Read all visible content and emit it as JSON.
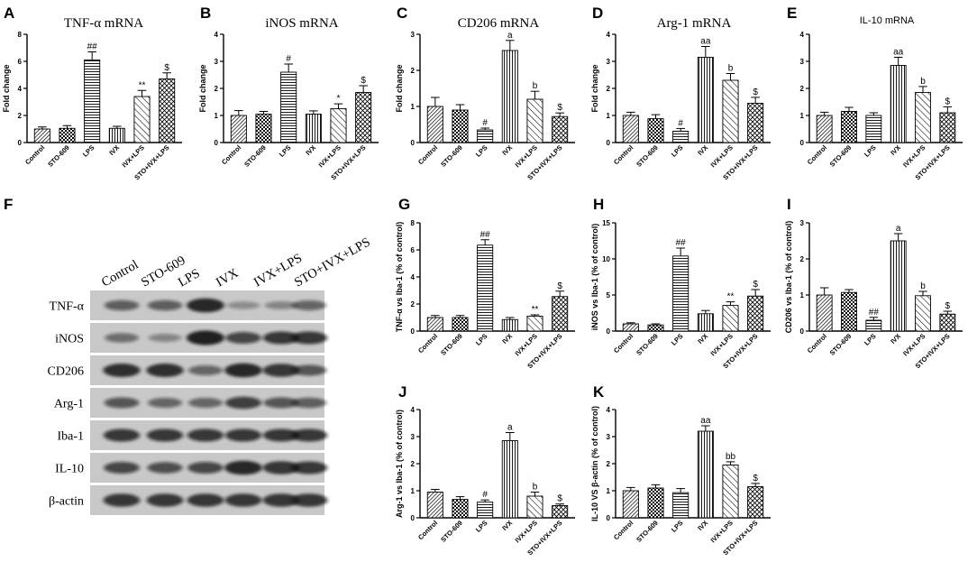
{
  "categories": [
    "Control",
    "STO-609",
    "LPS",
    "IVX",
    "IVX+LPS",
    "STO+IVX+LPS"
  ],
  "chart_data": [
    {
      "id": "A",
      "type": "bar",
      "title": "TNF-α mRNA",
      "title_style": "serif",
      "ylabel": "Fold change",
      "ylim": [
        0,
        8
      ],
      "yticks": [
        0,
        2,
        4,
        6,
        8
      ],
      "categories": [
        "Control",
        "STO-609",
        "LPS",
        "IVX",
        "IVX+LPS",
        "STO+IVX+LPS"
      ],
      "values": [
        1.0,
        1.05,
        6.1,
        1.05,
        3.4,
        4.7
      ],
      "errors": [
        0.15,
        0.2,
        0.6,
        0.15,
        0.45,
        0.45
      ],
      "labels": [
        "",
        "",
        "##",
        "",
        "**",
        "$"
      ]
    },
    {
      "id": "B",
      "type": "bar",
      "title": "iNOS mRNA",
      "title_style": "serif",
      "ylabel": "Fold change",
      "ylim": [
        0,
        4
      ],
      "yticks": [
        0,
        1,
        2,
        3,
        4
      ],
      "categories": [
        "Control",
        "STO-609",
        "LPS",
        "IVX",
        "IVX+LPS",
        "STO+IVX+LPS"
      ],
      "values": [
        1.0,
        1.05,
        2.6,
        1.05,
        1.25,
        1.85
      ],
      "errors": [
        0.18,
        0.1,
        0.3,
        0.12,
        0.18,
        0.25
      ],
      "labels": [
        "",
        "",
        "#",
        "",
        "*",
        "$"
      ]
    },
    {
      "id": "C",
      "type": "bar",
      "title": "CD206 mRNA",
      "title_style": "serif",
      "ylabel": "Fold change",
      "ylim": [
        0,
        3
      ],
      "yticks": [
        0,
        1,
        2,
        3
      ],
      "categories": [
        "Control",
        "STO-609",
        "LPS",
        "IVX",
        "IVX+LPS",
        "STO+IVX+LPS"
      ],
      "values": [
        1.0,
        0.9,
        0.35,
        2.55,
        1.2,
        0.72
      ],
      "errors": [
        0.25,
        0.15,
        0.05,
        0.28,
        0.22,
        0.1
      ],
      "labels": [
        "",
        "",
        "#",
        "a",
        "b",
        "$"
      ]
    },
    {
      "id": "D",
      "type": "bar",
      "title": "Arg-1 mRNA",
      "title_style": "serif",
      "ylabel": "Fold change",
      "ylim": [
        0,
        4
      ],
      "yticks": [
        0,
        1,
        2,
        3,
        4
      ],
      "categories": [
        "Control",
        "STO-609",
        "LPS",
        "IVX",
        "IVX+LPS",
        "STO+IVX+LPS"
      ],
      "values": [
        1.0,
        0.88,
        0.42,
        3.15,
        2.3,
        1.45
      ],
      "errors": [
        0.12,
        0.15,
        0.1,
        0.4,
        0.25,
        0.22
      ],
      "labels": [
        "",
        "",
        "#",
        "aa",
        "b",
        "$"
      ]
    },
    {
      "id": "E",
      "type": "bar",
      "title": "IL-10 mRNA",
      "title_style": "sans",
      "ylabel": "",
      "ylim": [
        0,
        4
      ],
      "yticks": [
        0,
        1,
        2,
        3,
        4
      ],
      "categories": [
        "Control",
        "STO-609",
        "LPS",
        "IVX",
        "IVX+LPS",
        "STO+IVX+LPS"
      ],
      "values": [
        1.0,
        1.15,
        1.0,
        2.85,
        1.85,
        1.1
      ],
      "errors": [
        0.12,
        0.15,
        0.1,
        0.3,
        0.22,
        0.22
      ],
      "labels": [
        "",
        "",
        "",
        "aa",
        "b",
        "$"
      ]
    },
    {
      "id": "G",
      "type": "bar",
      "title": "",
      "ylabel": "TNF-α vs Iba-1 (% of control)",
      "ylim": [
        0,
        8
      ],
      "yticks": [
        0,
        2,
        4,
        6,
        8
      ],
      "categories": [
        "Control",
        "STO-609",
        "LPS",
        "IVX",
        "IVX+LPS",
        "STO+IVX+LPS"
      ],
      "values": [
        1.0,
        1.0,
        6.35,
        0.85,
        1.1,
        2.55
      ],
      "errors": [
        0.15,
        0.15,
        0.4,
        0.15,
        0.1,
        0.4
      ],
      "labels": [
        "",
        "",
        "##",
        "",
        "**",
        "$"
      ]
    },
    {
      "id": "H",
      "type": "bar",
      "title": "",
      "ylabel": "iNOS vs Iba-1 (% of control)",
      "ylim": [
        0,
        15
      ],
      "yticks": [
        0,
        5,
        10,
        15
      ],
      "categories": [
        "Control",
        "STO-609",
        "LPS",
        "IVX",
        "IVX+LPS",
        "STO+IVX+LPS"
      ],
      "values": [
        1.0,
        0.85,
        10.4,
        2.4,
        3.55,
        4.85
      ],
      "errors": [
        0.15,
        0.15,
        1.1,
        0.45,
        0.5,
        0.9
      ],
      "labels": [
        "",
        "",
        "##",
        "",
        "**",
        "$"
      ]
    },
    {
      "id": "I",
      "type": "bar",
      "title": "",
      "ylabel": "CD206 vs Iba-1 (% of control)",
      "ylim": [
        0,
        3
      ],
      "yticks": [
        0,
        1,
        2,
        3
      ],
      "categories": [
        "Control",
        "STO-609",
        "LPS",
        "IVX",
        "IVX+LPS",
        "STO+IVX+LPS"
      ],
      "values": [
        1.0,
        1.07,
        0.3,
        2.5,
        0.98,
        0.47
      ],
      "errors": [
        0.2,
        0.08,
        0.08,
        0.2,
        0.12,
        0.08
      ],
      "labels": [
        "",
        "",
        "##",
        "a",
        "b",
        "$"
      ]
    },
    {
      "id": "J",
      "type": "bar",
      "title": "",
      "ylabel": "Arg-1 vs Iba-1 (% of control)",
      "ylim": [
        0,
        4
      ],
      "yticks": [
        0,
        1,
        2,
        3,
        4
      ],
      "categories": [
        "Control",
        "STO-609",
        "LPS",
        "IVX",
        "IVX+LPS",
        "STO+IVX+LPS"
      ],
      "values": [
        0.95,
        0.68,
        0.58,
        2.85,
        0.8,
        0.45
      ],
      "errors": [
        0.1,
        0.1,
        0.08,
        0.3,
        0.15,
        0.06
      ],
      "labels": [
        "",
        "",
        "#",
        "a",
        "b",
        "$"
      ]
    },
    {
      "id": "K",
      "type": "bar",
      "title": "",
      "ylabel": "IL-10 VS β-actin (% of control)",
      "ylim": [
        0,
        4
      ],
      "yticks": [
        0,
        1,
        2,
        3,
        4
      ],
      "categories": [
        "Control",
        "STO-609",
        "LPS",
        "IVX",
        "IVX+LPS",
        "STO+IVX+LPS"
      ],
      "values": [
        1.0,
        1.1,
        0.93,
        3.2,
        1.95,
        1.15
      ],
      "errors": [
        0.12,
        0.12,
        0.15,
        0.2,
        0.12,
        0.12
      ],
      "labels": [
        "",
        "",
        "",
        "aa",
        "bb",
        "$"
      ]
    }
  ],
  "blot": {
    "panel": "F",
    "lanes": [
      "Control",
      "STO-609",
      "LPS",
      "IVX",
      "IVX+LPS",
      "STO+IVX+LPS"
    ],
    "rows": [
      {
        "name": "TNF-α",
        "intensity": [
          0.55,
          0.55,
          0.95,
          0.25,
          0.3,
          0.5
        ]
      },
      {
        "name": "iNOS",
        "intensity": [
          0.45,
          0.3,
          1.0,
          0.7,
          0.8,
          0.8
        ]
      },
      {
        "name": "CD206",
        "intensity": [
          0.9,
          0.9,
          0.5,
          0.95,
          0.85,
          0.6
        ]
      },
      {
        "name": "Arg-1",
        "intensity": [
          0.6,
          0.5,
          0.5,
          0.75,
          0.6,
          0.55
        ]
      },
      {
        "name": "Iba-1",
        "intensity": [
          0.8,
          0.8,
          0.8,
          0.8,
          0.8,
          0.8
        ]
      },
      {
        "name": "IL-10",
        "intensity": [
          0.7,
          0.65,
          0.7,
          0.95,
          0.85,
          0.8
        ]
      },
      {
        "name": "β-actin",
        "intensity": [
          0.85,
          0.85,
          0.85,
          0.85,
          0.85,
          0.85
        ]
      }
    ]
  },
  "colors": {
    "bar_stroke": "#000000",
    "blot_bg": "#c8c8c8",
    "band": "#141414"
  }
}
